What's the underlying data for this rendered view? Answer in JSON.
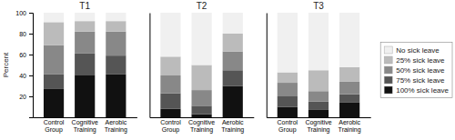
{
  "chart_data": [
    {
      "type": "bar",
      "title": "T1",
      "stacked": true,
      "ylabel": "Percent",
      "legend": "right",
      "categories": [
        "Control\nGroup",
        "Cognitive\nTraining",
        "Aerobic\nTraining"
      ],
      "series": [
        {
          "name": "100% sick leave",
          "color": "#111111",
          "values": [
            27,
            40,
            41
          ]
        },
        {
          "name": "75% sick leave",
          "color": "#555555",
          "values": [
            14,
            21,
            18
          ]
        },
        {
          "name": "50% sick leave",
          "color": "#888888",
          "values": [
            28,
            21,
            23
          ]
        },
        {
          "name": "25% sick leave",
          "color": "#bbbbbb",
          "values": [
            22,
            10,
            10
          ]
        },
        {
          "name": "No sick leave",
          "color": "#f0f0f0",
          "values": [
            9,
            8,
            8
          ]
        }
      ],
      "ylim": [
        0,
        100
      ],
      "yticks": [
        20,
        40,
        60,
        80,
        100
      ]
    },
    {
      "type": "bar",
      "title": "T2",
      "stacked": true,
      "tick_labels": "x",
      "categories": [
        "Control\nGroup",
        "Cognitive\nTraining",
        "Aerobic\nTraining"
      ],
      "series": [
        {
          "name": "100% sick leave",
          "color": "#111111",
          "values": [
            8,
            3,
            30
          ]
        },
        {
          "name": "75% sick leave",
          "color": "#555555",
          "values": [
            15,
            8,
            15
          ]
        },
        {
          "name": "50% sick leave",
          "color": "#888888",
          "values": [
            17,
            15,
            18
          ]
        },
        {
          "name": "25% sick leave",
          "color": "#bbbbbb",
          "values": [
            18,
            24,
            17
          ]
        },
        {
          "name": "No sick leave",
          "color": "#f0f0f0",
          "values": [
            42,
            50,
            20
          ]
        }
      ],
      "ylim": [
        0,
        100
      ],
      "yticks": [
        20,
        40,
        60,
        80,
        100
      ]
    },
    {
      "type": "bar",
      "title": "T3",
      "stacked": true,
      "tick_labels": "x",
      "categories": [
        "Control\nGroup",
        "Cognitive\nTraining",
        "Aerobic\nTraining"
      ],
      "series": [
        {
          "name": "100% sick leave",
          "color": "#111111",
          "values": [
            10,
            7,
            14
          ]
        },
        {
          "name": "75% sick leave",
          "color": "#555555",
          "values": [
            10,
            8,
            8
          ]
        },
        {
          "name": "50% sick leave",
          "color": "#888888",
          "values": [
            13,
            10,
            12
          ]
        },
        {
          "name": "25% sick leave",
          "color": "#bbbbbb",
          "values": [
            10,
            20,
            14
          ]
        },
        {
          "name": "No sick leave",
          "color": "#f0f0f0",
          "values": [
            57,
            55,
            52
          ]
        }
      ],
      "ylim": [
        0,
        100
      ],
      "yticks": [
        20,
        40,
        60,
        80,
        100
      ]
    }
  ]
}
